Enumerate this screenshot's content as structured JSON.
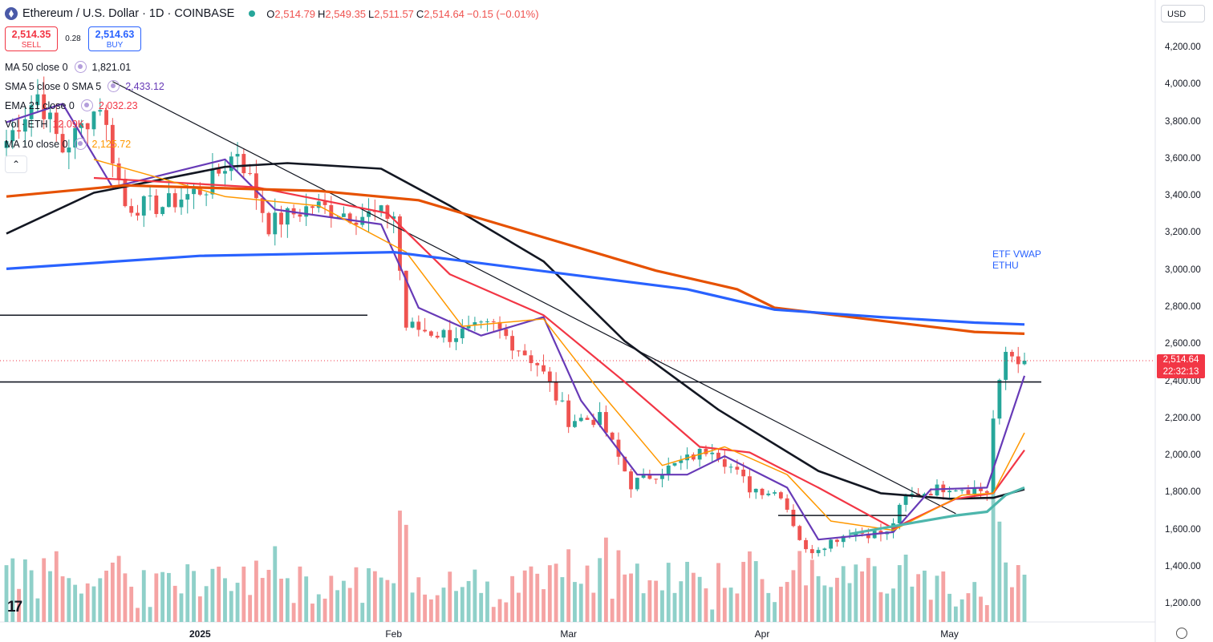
{
  "header": {
    "title": "Ethereum / U.S. Dollar · 1D · COINBASE",
    "open_label": "O",
    "open": "2,514.79",
    "high_label": "H",
    "high": "2,549.35",
    "low_label": "L",
    "low": "2,511.57",
    "close_label": "C",
    "close": "2,514.64",
    "change": "−0.15 (−0.01%)"
  },
  "trade": {
    "sell_price": "2,514.35",
    "sell_label": "SELL",
    "spread": "0.28",
    "buy_price": "2,514.63",
    "buy_label": "BUY"
  },
  "indicators": [
    {
      "name": "MA 50 close 0",
      "value": "1,821.01",
      "color": "#131722"
    },
    {
      "name": "SMA 5 close 0 SMA 5",
      "value": "2,433.12",
      "color": "#673ab7"
    },
    {
      "name": "EMA 21 close 0",
      "value": "2,032.23",
      "color": "#f23645"
    },
    {
      "name": "Vol · ETH",
      "value": "12.09K",
      "color": "#f23645"
    },
    {
      "name": "MA 10 close 0",
      "value": "2,125.72",
      "color": "#ff9800"
    }
  ],
  "currency": "USD",
  "price_tag": {
    "price": "2,514.64",
    "countdown": "22:32:13"
  },
  "annotation": {
    "line1": "ETF VWAP",
    "line2": "ETHU"
  },
  "colors": {
    "up": "#26a69a",
    "down": "#ef5350",
    "vol_up": "#8fd0c9",
    "vol_down": "#f5a3a3",
    "sma5": "#673ab7",
    "ema21": "#f23645",
    "ma10": "#ff9800",
    "ma50": "#131722",
    "orange_ma": "#e65100",
    "blue_vwap": "#2962ff",
    "teal_ma": "#4db6ac"
  },
  "chart_data": {
    "type": "candlestick",
    "y_ticks": [
      "4,200.00",
      "4,000.00",
      "3,800.00",
      "3,600.00",
      "3,400.00",
      "3,200.00",
      "3,000.00",
      "2,800.00",
      "2,600.00",
      "2,400.00",
      "2,200.00",
      "2,000.00",
      "1,800.00",
      "1,600.00",
      "1,400.00",
      "1,200.00"
    ],
    "ylim": [
      1110,
      4330
    ],
    "x_ticks": [
      {
        "label": "2025",
        "date": "2025-01-01",
        "bold": true
      },
      {
        "label": "Feb",
        "date": "2025-02-01",
        "bold": false
      },
      {
        "label": "Mar",
        "date": "2025-03-01",
        "bold": false
      },
      {
        "label": "Apr",
        "date": "2025-04-01",
        "bold": false
      },
      {
        "label": "May",
        "date": "2025-05-01",
        "bold": false
      }
    ],
    "date_range": [
      "2024-12-01",
      "2025-05-13"
    ],
    "ohlc_weekly_anchors": [
      {
        "date": "2024-12-01",
        "close": 3700
      },
      {
        "date": "2024-12-06",
        "close": 3950
      },
      {
        "date": "2024-12-10",
        "close": 3650
      },
      {
        "date": "2024-12-16",
        "close": 3900
      },
      {
        "date": "2024-12-20",
        "close": 3350
      },
      {
        "date": "2024-12-26",
        "close": 3350
      },
      {
        "date": "2025-01-02",
        "close": 3450
      },
      {
        "date": "2025-01-07",
        "close": 3650
      },
      {
        "date": "2025-01-12",
        "close": 3250
      },
      {
        "date": "2025-01-19",
        "close": 3350
      },
      {
        "date": "2025-01-26",
        "close": 3300
      },
      {
        "date": "2025-02-01",
        "close": 3300
      },
      {
        "date": "2025-02-03",
        "close": 2700
      },
      {
        "date": "2025-02-10",
        "close": 2650
      },
      {
        "date": "2025-02-17",
        "close": 2700
      },
      {
        "date": "2025-02-24",
        "close": 2500
      },
      {
        "date": "2025-03-01",
        "close": 2200
      },
      {
        "date": "2025-03-06",
        "close": 2200
      },
      {
        "date": "2025-03-11",
        "close": 1850
      },
      {
        "date": "2025-03-18",
        "close": 1950
      },
      {
        "date": "2025-03-24",
        "close": 2050
      },
      {
        "date": "2025-03-30",
        "close": 1830
      },
      {
        "date": "2025-04-04",
        "close": 1800
      },
      {
        "date": "2025-04-08",
        "close": 1480
      },
      {
        "date": "2025-04-15",
        "close": 1590
      },
      {
        "date": "2025-04-21",
        "close": 1580
      },
      {
        "date": "2025-04-24",
        "close": 1780
      },
      {
        "date": "2025-05-01",
        "close": 1840
      },
      {
        "date": "2025-05-07",
        "close": 1810
      },
      {
        "date": "2025-05-08",
        "close": 2200
      },
      {
        "date": "2025-05-10",
        "close": 2560
      },
      {
        "date": "2025-05-13",
        "close": 2514.64
      }
    ],
    "horizontal_levels": [
      2760,
      2400,
      1680
    ],
    "series": [
      {
        "name": "MA 50 close 0",
        "points": [
          [
            "2024-12-01",
            3200
          ],
          [
            "2024-12-15",
            3420
          ],
          [
            "2025-01-05",
            3560
          ],
          [
            "2025-01-15",
            3580
          ],
          [
            "2025-01-30",
            3550
          ],
          [
            "2025-02-10",
            3350
          ],
          [
            "2025-02-25",
            3050
          ],
          [
            "2025-03-10",
            2620
          ],
          [
            "2025-03-25",
            2250
          ],
          [
            "2025-04-10",
            1920
          ],
          [
            "2025-04-20",
            1800
          ],
          [
            "2025-05-01",
            1770
          ],
          [
            "2025-05-08",
            1775
          ],
          [
            "2025-05-13",
            1821
          ]
        ]
      },
      {
        "name": "SMA 5 close 0 SMA 5",
        "points": [
          [
            "2024-12-01",
            3800
          ],
          [
            "2024-12-10",
            3900
          ],
          [
            "2024-12-18",
            3450
          ],
          [
            "2025-01-05",
            3600
          ],
          [
            "2025-01-13",
            3330
          ],
          [
            "2025-01-30",
            3250
          ],
          [
            "2025-02-05",
            2800
          ],
          [
            "2025-02-15",
            2650
          ],
          [
            "2025-02-25",
            2750
          ],
          [
            "2025-03-03",
            2300
          ],
          [
            "2025-03-12",
            1900
          ],
          [
            "2025-03-20",
            1900
          ],
          [
            "2025-03-26",
            2000
          ],
          [
            "2025-04-05",
            1830
          ],
          [
            "2025-04-10",
            1550
          ],
          [
            "2025-04-22",
            1590
          ],
          [
            "2025-04-28",
            1820
          ],
          [
            "2025-05-07",
            1830
          ],
          [
            "2025-05-13",
            2433.12
          ]
        ]
      },
      {
        "name": "EMA 21 close 0",
        "points": [
          [
            "2024-12-15",
            3500
          ],
          [
            "2025-01-10",
            3450
          ],
          [
            "2025-01-31",
            3310
          ],
          [
            "2025-02-10",
            2980
          ],
          [
            "2025-02-25",
            2760
          ],
          [
            "2025-03-10",
            2400
          ],
          [
            "2025-03-22",
            2050
          ],
          [
            "2025-03-30",
            2020
          ],
          [
            "2025-04-10",
            1830
          ],
          [
            "2025-04-22",
            1610
          ],
          [
            "2025-05-02",
            1770
          ],
          [
            "2025-05-08",
            1800
          ],
          [
            "2025-05-13",
            2032.23
          ]
        ]
      },
      {
        "name": "MA 10 close 0",
        "points": [
          [
            "2024-12-15",
            3600
          ],
          [
            "2025-01-05",
            3400
          ],
          [
            "2025-01-20",
            3350
          ],
          [
            "2025-02-03",
            3100
          ],
          [
            "2025-02-12",
            2700
          ],
          [
            "2025-02-25",
            2740
          ],
          [
            "2025-03-06",
            2350
          ],
          [
            "2025-03-16",
            1950
          ],
          [
            "2025-03-26",
            2050
          ],
          [
            "2025-04-05",
            1900
          ],
          [
            "2025-04-12",
            1650
          ],
          [
            "2025-04-22",
            1600
          ],
          [
            "2025-05-03",
            1790
          ],
          [
            "2025-05-08",
            1800
          ],
          [
            "2025-05-13",
            2125.72
          ]
        ]
      },
      {
        "name": "",
        "points": [
          [
            "2024-12-01",
            3400
          ],
          [
            "2024-12-20",
            3460
          ],
          [
            "2025-01-20",
            3430
          ],
          [
            "2025-02-05",
            3380
          ],
          [
            "2025-02-25",
            3180
          ],
          [
            "2025-03-15",
            3000
          ],
          [
            "2025-03-28",
            2900
          ],
          [
            "2025-04-03",
            2800
          ],
          [
            "2025-04-20",
            2730
          ],
          [
            "2025-05-05",
            2670
          ],
          [
            "2025-05-13",
            2660
          ]
        ]
      },
      {
        "name": "",
        "points": [
          [
            "2024-12-01",
            3010
          ],
          [
            "2025-01-01",
            3080
          ],
          [
            "2025-02-01",
            3100
          ],
          [
            "2025-03-01",
            2980
          ],
          [
            "2025-03-20",
            2900
          ],
          [
            "2025-04-03",
            2790
          ],
          [
            "2025-04-20",
            2750
          ],
          [
            "2025-05-05",
            2720
          ],
          [
            "2025-05-13",
            2710
          ]
        ]
      },
      {
        "name": "",
        "points": [
          [
            "2025-04-15",
            1580
          ],
          [
            "2025-04-25",
            1640
          ],
          [
            "2025-05-02",
            1680
          ],
          [
            "2025-05-07",
            1700
          ],
          [
            "2025-05-10",
            1790
          ],
          [
            "2025-05-13",
            1830
          ]
        ]
      }
    ],
    "trendlines": [
      {
        "from": [
          "2024-12-18",
          4020
        ],
        "to": [
          "2025-05-02",
          1690
        ]
      }
    ],
    "volume_note": "volume bars drawn per candle"
  }
}
